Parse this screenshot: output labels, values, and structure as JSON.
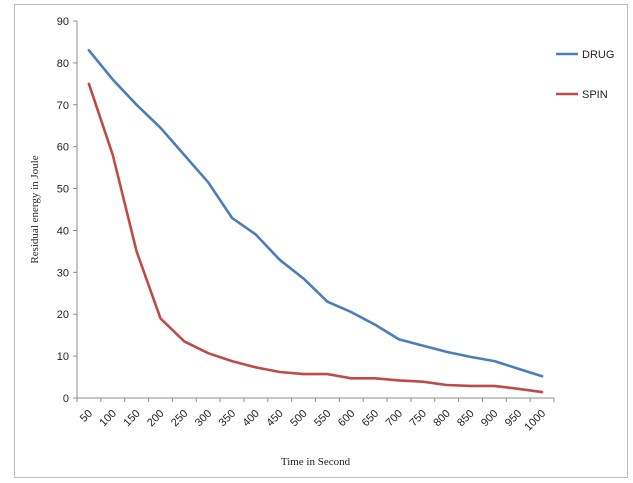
{
  "chart_data": {
    "type": "line",
    "title": "",
    "xlabel": "Time in Second",
    "ylabel": "Residual energy in Joule",
    "ylim": [
      0,
      90
    ],
    "yticks": [
      "0",
      "10",
      "20",
      "30",
      "40",
      "50",
      "60",
      "70",
      "80",
      "90"
    ],
    "categories": [
      "50",
      "100",
      "150",
      "200",
      "250",
      "300",
      "350",
      "400",
      "450",
      "500",
      "550",
      "600",
      "650",
      "700",
      "750",
      "800",
      "850",
      "900",
      "950",
      "1000"
    ],
    "grid": false,
    "legend_position": "right",
    "series": [
      {
        "name": "DRUG",
        "color": "#4A7EBB",
        "values": [
          83,
          76,
          70,
          64.5,
          58,
          51.5,
          43,
          39,
          33,
          28.5,
          23,
          20.5,
          17.5,
          14,
          12.5,
          11,
          9.8,
          8.8,
          7,
          5.2
        ]
      },
      {
        "name": "SPIN",
        "color": "#BE4B48",
        "values": [
          75,
          58,
          35,
          19,
          13.5,
          10.7,
          8.8,
          7.3,
          6.2,
          5.7,
          5.7,
          4.7,
          4.7,
          4.2,
          3.9,
          3.1,
          2.9,
          2.9,
          2.2,
          1.4
        ]
      }
    ]
  }
}
